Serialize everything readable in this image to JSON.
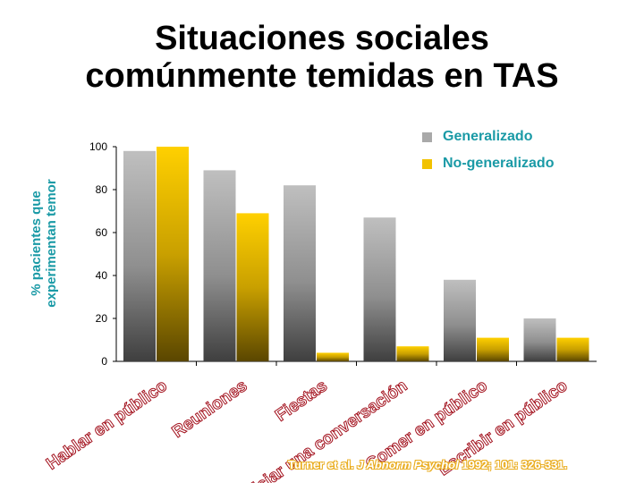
{
  "title": {
    "line1": "Situaciones sociales",
    "line2": "comúnmente temidas en TAS"
  },
  "citation": {
    "authors": "Turner et al.",
    "journal": "J Abnorm Psychol",
    "rest": "1992; 101: 326-331."
  },
  "chart_data": {
    "type": "bar",
    "ylabel_lines": [
      "% pacientes  que",
      "experimentan temor"
    ],
    "ylim": [
      0,
      100
    ],
    "yticks": [
      0,
      20,
      40,
      60,
      80,
      100
    ],
    "legend_position": "top-right",
    "categories": [
      [
        "Hablar",
        "en",
        "público"
      ],
      [
        "Reuniones"
      ],
      [
        "Fiestas"
      ],
      [
        "Iniciar una",
        "conversación"
      ],
      [
        "Comer",
        "en",
        "público"
      ],
      [
        "Escribir",
        "en",
        "público"
      ]
    ],
    "series": [
      {
        "name": "Generalizado",
        "color": "#a9a9a9",
        "values": [
          98,
          89,
          82,
          67,
          38,
          20
        ]
      },
      {
        "name": "No-generalizado",
        "color": "#f2c200",
        "values": [
          100,
          69,
          4,
          7,
          11,
          11
        ]
      }
    ]
  }
}
